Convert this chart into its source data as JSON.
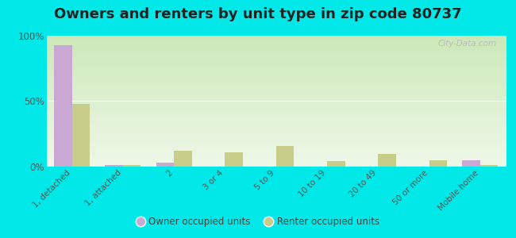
{
  "title": "Owners and renters by unit type in zip code 80737",
  "categories": [
    "1, detached",
    "1, attached",
    "2",
    "3 or 4",
    "5 to 9",
    "10 to 19",
    "20 to 49",
    "50 or more",
    "Mobile home"
  ],
  "owner_values": [
    93,
    1,
    3,
    0,
    0,
    0,
    0,
    0,
    5
  ],
  "renter_values": [
    48,
    1,
    12,
    11,
    16,
    4,
    10,
    5,
    1
  ],
  "owner_color": "#c9a8d4",
  "renter_color": "#c8cd8a",
  "background_color": "#00e8e8",
  "ymax": 100,
  "yticks": [
    0,
    50,
    100
  ],
  "ytick_labels": [
    "0%",
    "50%",
    "100%"
  ],
  "watermark": "City-Data.com",
  "legend_owner": "Owner occupied units",
  "legend_renter": "Renter occupied units",
  "title_fontsize": 13,
  "bar_width": 0.35,
  "grad_top": "#cce8b8",
  "grad_bottom": "#eef8e8"
}
